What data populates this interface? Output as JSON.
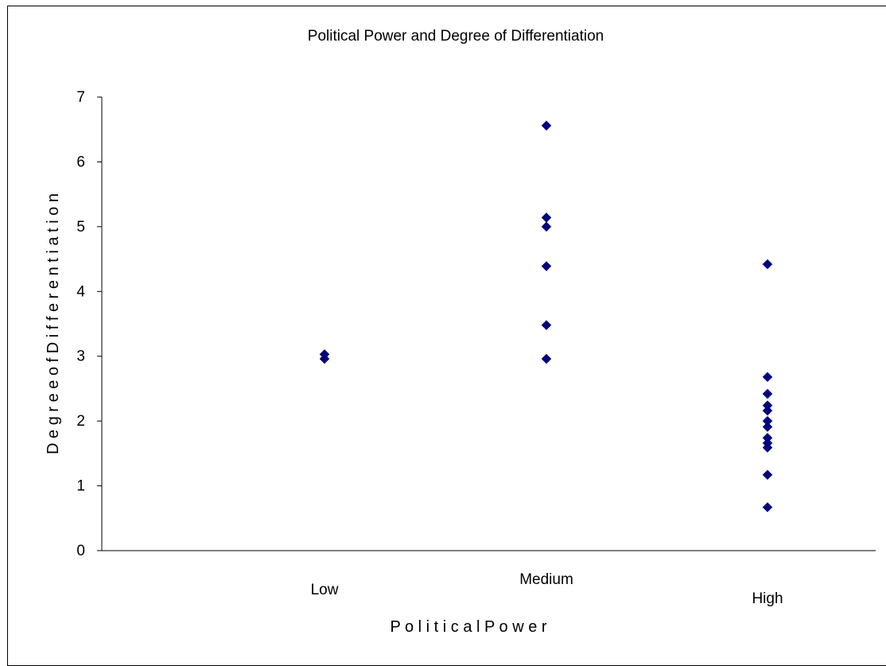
{
  "chart_data": {
    "type": "scatter",
    "title": "Political Power and Degree of Differentiation",
    "xlabel": "P o l i t i c a l   P o w e r",
    "ylabel": "D e g r e e   o f D i f f e r e n t i a t i o n",
    "categories": [
      "Low",
      "Medium",
      "High"
    ],
    "yticks": [
      "0",
      "1",
      "2",
      "3",
      "4",
      "5",
      "6",
      "7"
    ],
    "ylim": [
      0,
      7
    ],
    "grid": false,
    "legend": "none",
    "marker": "diamond",
    "marker_color": "#000080",
    "series": [
      {
        "points": [
          {
            "x": "Low",
            "y": 3.03
          },
          {
            "x": "Low",
            "y": 2.96
          },
          {
            "x": "Medium",
            "y": 6.56
          },
          {
            "x": "Medium",
            "y": 5.14
          },
          {
            "x": "Medium",
            "y": 5.0
          },
          {
            "x": "Medium",
            "y": 4.39
          },
          {
            "x": "Medium",
            "y": 3.48
          },
          {
            "x": "Medium",
            "y": 2.96
          },
          {
            "x": "High",
            "y": 4.42
          },
          {
            "x": "High",
            "y": 2.68
          },
          {
            "x": "High",
            "y": 2.42
          },
          {
            "x": "High",
            "y": 2.24
          },
          {
            "x": "High",
            "y": 2.16
          },
          {
            "x": "High",
            "y": 2.0
          },
          {
            "x": "High",
            "y": 1.91
          },
          {
            "x": "High",
            "y": 1.74
          },
          {
            "x": "High",
            "y": 1.66
          },
          {
            "x": "High",
            "y": 1.59
          },
          {
            "x": "High",
            "y": 1.17
          },
          {
            "x": "High",
            "y": 0.67
          }
        ]
      }
    ]
  }
}
